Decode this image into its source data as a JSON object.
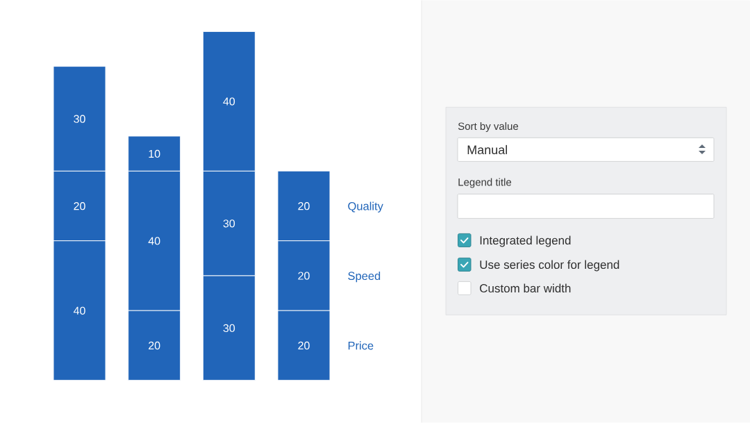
{
  "chart_data": [
    {
      "type": "bar",
      "stacked": true,
      "data_labels": true,
      "categories": [
        null,
        null,
        null,
        null
      ],
      "series": [
        {
          "name": "Price",
          "color": "#2165b9",
          "values": [
            40,
            20,
            30,
            20
          ]
        },
        {
          "name": "Speed",
          "color": "#2165b9",
          "values": [
            20,
            40,
            30,
            20
          ]
        },
        {
          "name": "Quality",
          "color": "#2165b9",
          "values": [
            30,
            10,
            40,
            20
          ]
        }
      ]
    },
    {
      "type": "other",
      "annotations": [
        "Sort by value",
        "Manual",
        "Legend title",
        "Integrated legend",
        "Use series color for legend",
        "Custom bar width"
      ]
    }
  ]
}
